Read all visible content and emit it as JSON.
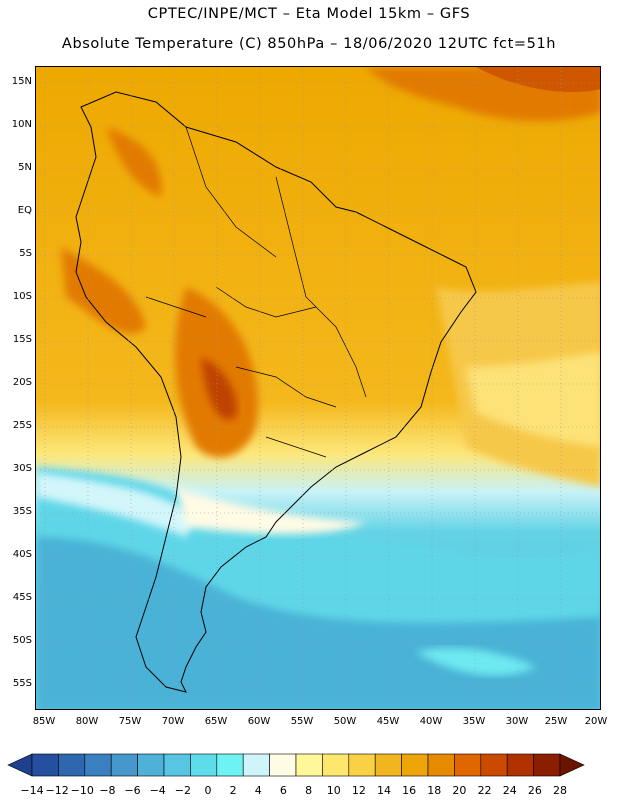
{
  "title": {
    "line1": "CPTEC/INPE/MCT –  Eta Model 15km – GFS",
    "line2": "Absolute Temperature (C) 850hPa – 18/06/2020 12UTC fct=51h"
  },
  "map": {
    "region": "South America",
    "variable": "Absolute Temperature (C) 850hPa",
    "lat_ticks": [
      "15N",
      "10N",
      "5N",
      "EQ",
      "5S",
      "10S",
      "15S",
      "20S",
      "25S",
      "30S",
      "35S",
      "40S",
      "45S",
      "50S",
      "55S"
    ],
    "lon_ticks": [
      "85W",
      "80W",
      "75W",
      "70W",
      "65W",
      "60W",
      "55W",
      "50W",
      "45W",
      "40W",
      "35W",
      "30W",
      "25W",
      "20W"
    ]
  },
  "colorbar": {
    "labels": [
      "-14",
      "-12",
      "-10",
      "-8",
      "-6",
      "-4",
      "-2",
      "0",
      "2",
      "4",
      "6",
      "8",
      "10",
      "12",
      "14",
      "16",
      "18",
      "20",
      "22",
      "24",
      "26",
      "28"
    ],
    "colors": [
      "#1f3f8f",
      "#25509f",
      "#2f66b0",
      "#3a80c0",
      "#4597cc",
      "#4fb0d8",
      "#58c6e3",
      "#5fdcea",
      "#6ef2f2",
      "#cdf5fa",
      "#fffbe5",
      "#fff79a",
      "#fde86d",
      "#f8d145",
      "#f1b51f",
      "#eda508",
      "#e68a00",
      "#e06600",
      "#cb4a00",
      "#b03200",
      "#8a1e00",
      "#6b1400"
    ]
  }
}
